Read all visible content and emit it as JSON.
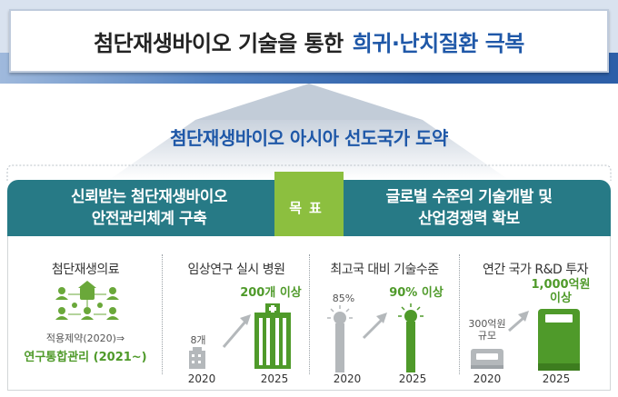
{
  "header": {
    "title_main": "첨단재생바이오 기술을 통한",
    "title_highlight": "희귀·난치질환 극복"
  },
  "vision": "첨단재생바이오 아시아 선도국가 도약",
  "goal": {
    "left": [
      "신뢰받는 첨단재생바이오",
      "안전관리체계 구축"
    ],
    "badge": "목표",
    "right": [
      "글로벌 수준의 기술개발 및",
      "산업경쟁력 확보"
    ]
  },
  "indicators": [
    {
      "title": "첨단재생의료",
      "note": "적용제약(2020)⇒",
      "target": "연구통합관리 (2021~)"
    },
    {
      "title": "임상연구 실시 병원",
      "before_label": "8개",
      "after_label": "200개 이상",
      "before_year": "2020",
      "after_year": "2025"
    },
    {
      "title": "최고국 대비 기술수준",
      "before_label": "85%",
      "after_label": "90% 이상",
      "before_year": "2020",
      "after_year": "2025"
    },
    {
      "title": "연간 국가 R&D 투자",
      "before_label": [
        "300억원",
        "규모"
      ],
      "after_label": [
        "1,000억원",
        "이상"
      ],
      "before_year": "2020",
      "after_year": "2025"
    }
  ],
  "colors": {
    "navy": "#1f58a8",
    "teal": "#277a86",
    "green": "#4f9a2a",
    "badge": "#8cbf3f",
    "gray": "#b4b8bb"
  }
}
